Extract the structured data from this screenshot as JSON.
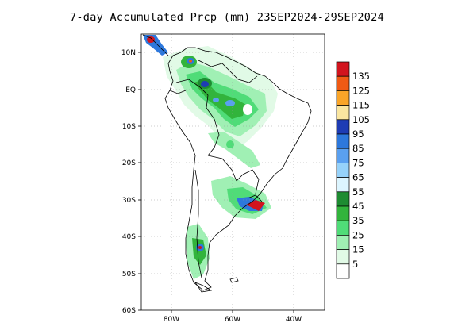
{
  "title": "7-day Accumulated Prcp (mm) 23SEP2024-29SEP2024",
  "map": {
    "lat_ticks": [
      "10N",
      "EQ",
      "10S",
      "20S",
      "30S",
      "40S",
      "50S",
      "60S"
    ],
    "lon_ticks": [
      "80W",
      "60W",
      "40W"
    ],
    "lon_range": [
      -90,
      -30
    ],
    "lat_range": [
      -60,
      15
    ],
    "gridlines": "dotted"
  },
  "legend": {
    "position": "right",
    "levels": [
      {
        "label": "135",
        "color": "#d2141e"
      },
      {
        "label": "125",
        "color": "#f05a14"
      },
      {
        "label": "115",
        "color": "#faa528"
      },
      {
        "label": "105",
        "color": "#fae6a0"
      },
      {
        "label": "95",
        "color": "#1e3cb4"
      },
      {
        "label": "85",
        "color": "#2d78dc"
      },
      {
        "label": "75",
        "color": "#5aa0f0"
      },
      {
        "label": "65",
        "color": "#96d2fa"
      },
      {
        "label": "55",
        "color": "#dcf5ff"
      },
      {
        "label": "45",
        "color": "#1e8c32"
      },
      {
        "label": "35",
        "color": "#32b43c"
      },
      {
        "label": "25",
        "color": "#50dc78"
      },
      {
        "label": "15",
        "color": "#a0f0b4"
      },
      {
        "label": "5",
        "color": "#e1fae6"
      },
      {
        "label": "",
        "color": "#ffffff"
      }
    ]
  }
}
